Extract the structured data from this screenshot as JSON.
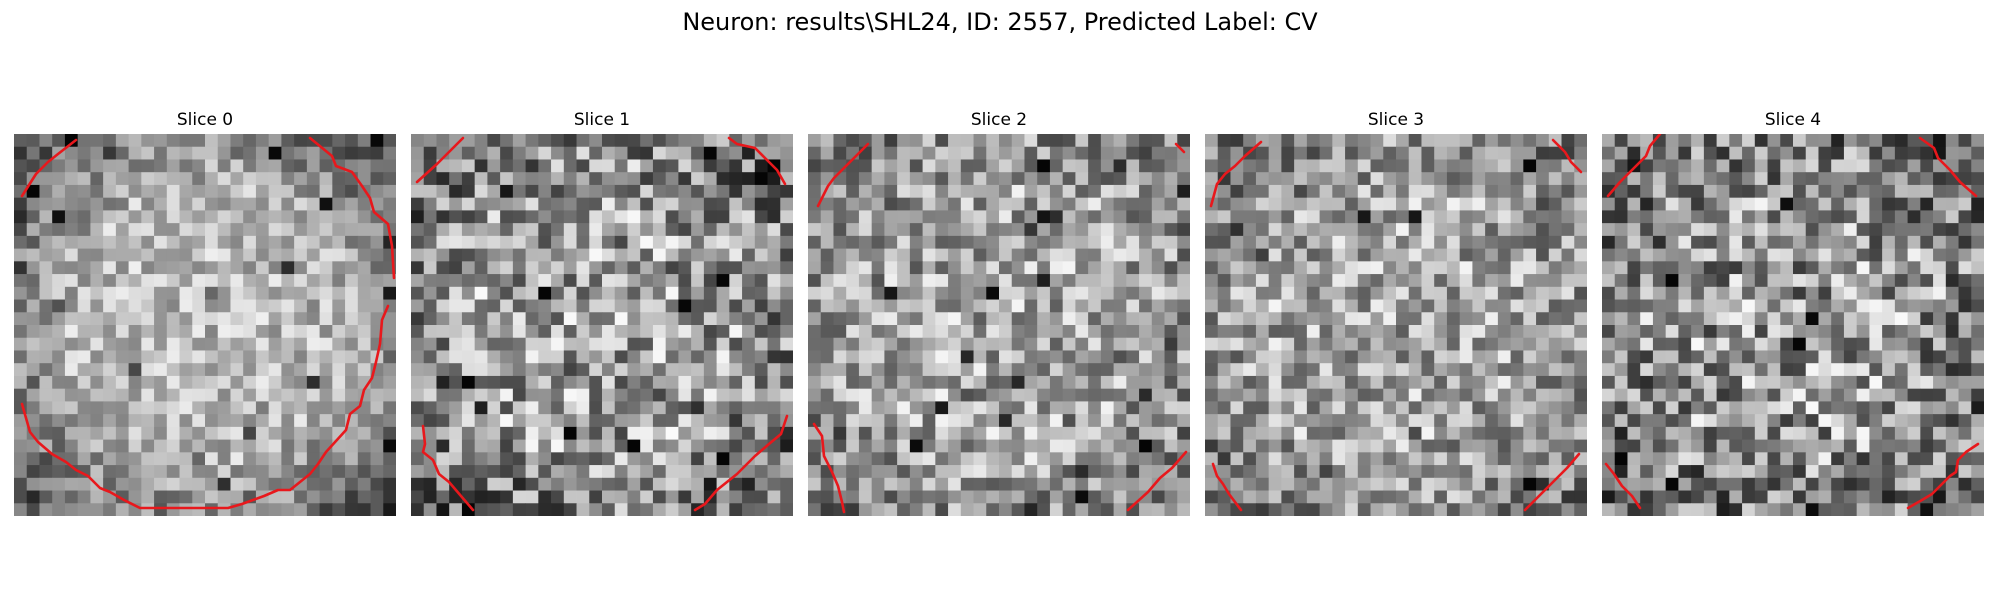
{
  "figure": {
    "title": "Neuron: results\\SHL24, ID: 2557, Predicted Label: CV"
  },
  "panels": [
    {
      "title": "Slice 0"
    },
    {
      "title": "Slice 1"
    },
    {
      "title": "Slice 2"
    },
    {
      "title": "Slice 3"
    },
    {
      "title": "Slice 4"
    }
  ],
  "colors": {
    "contour": "#e8181c",
    "background": "#ffffff",
    "colormap": "gray"
  }
}
